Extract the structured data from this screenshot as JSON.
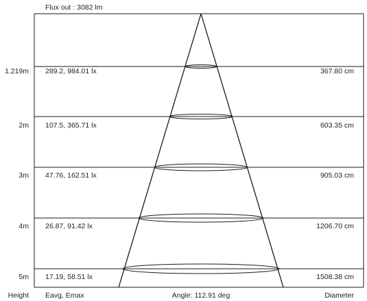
{
  "header": {
    "flux_label": "Flux out : 3082 lm"
  },
  "footer": {
    "height_label": "Height",
    "illuminance_label": "Eavg, Emax",
    "angle_label": "Angle: 112.91 deg",
    "diameter_label": "Diameter"
  },
  "rows": [
    {
      "height": "1.219m",
      "illuminance": "289.2, 984.01 lx",
      "diameter": "367.80 cm"
    },
    {
      "height": "2m",
      "illuminance": "107.5, 365.71 lx",
      "diameter": "603.35 cm"
    },
    {
      "height": "3m",
      "illuminance": "47.76, 162.51 lx",
      "diameter": "905.03 cm"
    },
    {
      "height": "4m",
      "illuminance": "26.87, 91.42 lx",
      "diameter": "1206.70 cm"
    },
    {
      "height": "5m",
      "illuminance": "17.19, 58.51 lx",
      "diameter": "1508.38 cm"
    }
  ],
  "colors": {
    "line": "#1a1a1a",
    "text": "#222222"
  }
}
